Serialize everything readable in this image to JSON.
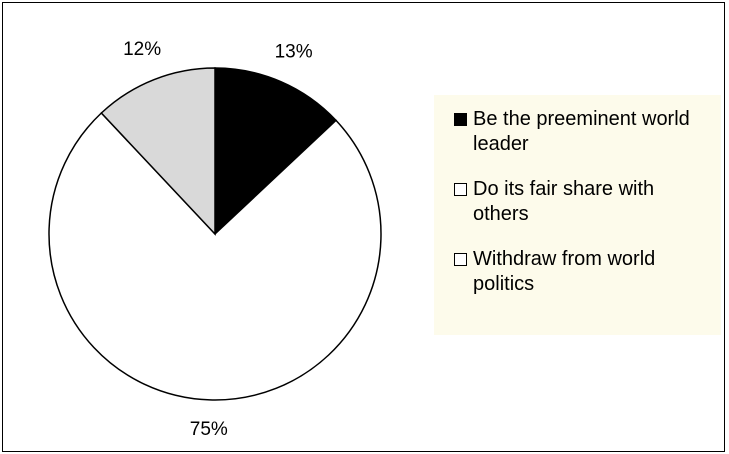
{
  "chart_data": {
    "type": "pie",
    "title": "",
    "slices": [
      {
        "label": "Be the preeminent world leader",
        "value": 13,
        "display": "13%",
        "color": "#000000"
      },
      {
        "label": "Do its fair share with others",
        "value": 75,
        "display": "75%",
        "color": "#ffffff"
      },
      {
        "label": "Withdraw from world politics",
        "value": 12,
        "display": "12%",
        "color": "#d9d9d9"
      }
    ],
    "legend": {
      "position": "right",
      "background": "#fdfbeb",
      "items": [
        {
          "label": "Be the preeminent world leader",
          "swatch": "#000000"
        },
        {
          "label": "Do its fair share with others",
          "swatch": "#ffffff"
        },
        {
          "label": "Withdraw from world politics",
          "swatch": "#ffffff"
        }
      ]
    }
  }
}
